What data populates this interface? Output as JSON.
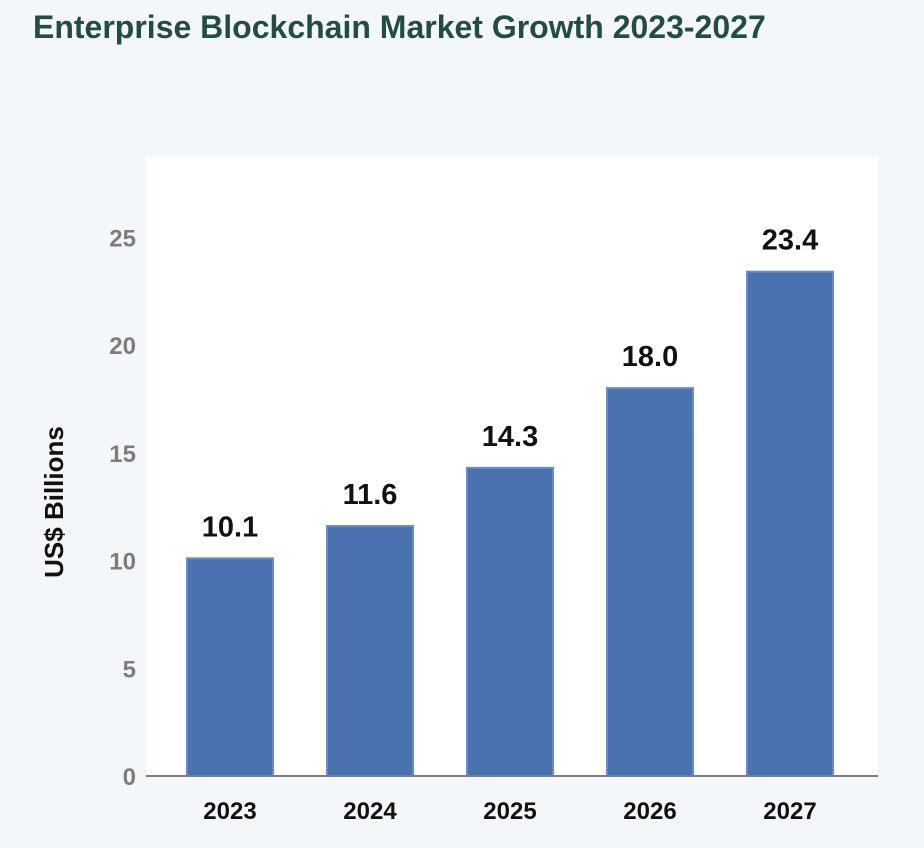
{
  "header": {
    "title": "Enterprise Blockchain Market Growth 2023-2027"
  },
  "chart_data": {
    "type": "bar",
    "categories": [
      "2023",
      "2024",
      "2025",
      "2026",
      "2027"
    ],
    "values": [
      10.1,
      11.6,
      14.3,
      18.0,
      23.4
    ],
    "data_labels": [
      "10.1",
      "11.6",
      "14.3",
      "18.0",
      "23.4"
    ],
    "title": "Enterprise Blockchain Market Growth 2023-2027",
    "xlabel": "",
    "ylabel": "US$ Billions",
    "ylim": [
      0,
      28
    ],
    "y_ticks": [
      0,
      5,
      10,
      15,
      20,
      25
    ],
    "grid": false,
    "legend": "none",
    "colors": {
      "bar": "#4b72b0",
      "bar_edge": "#6a8cc2",
      "plot_background": "#ffffff",
      "page_background": "#f3f7fa",
      "title": "#244d42",
      "axis": "#7e7e7e",
      "tick_label": "#7d7d7d",
      "label": "#111111"
    }
  }
}
